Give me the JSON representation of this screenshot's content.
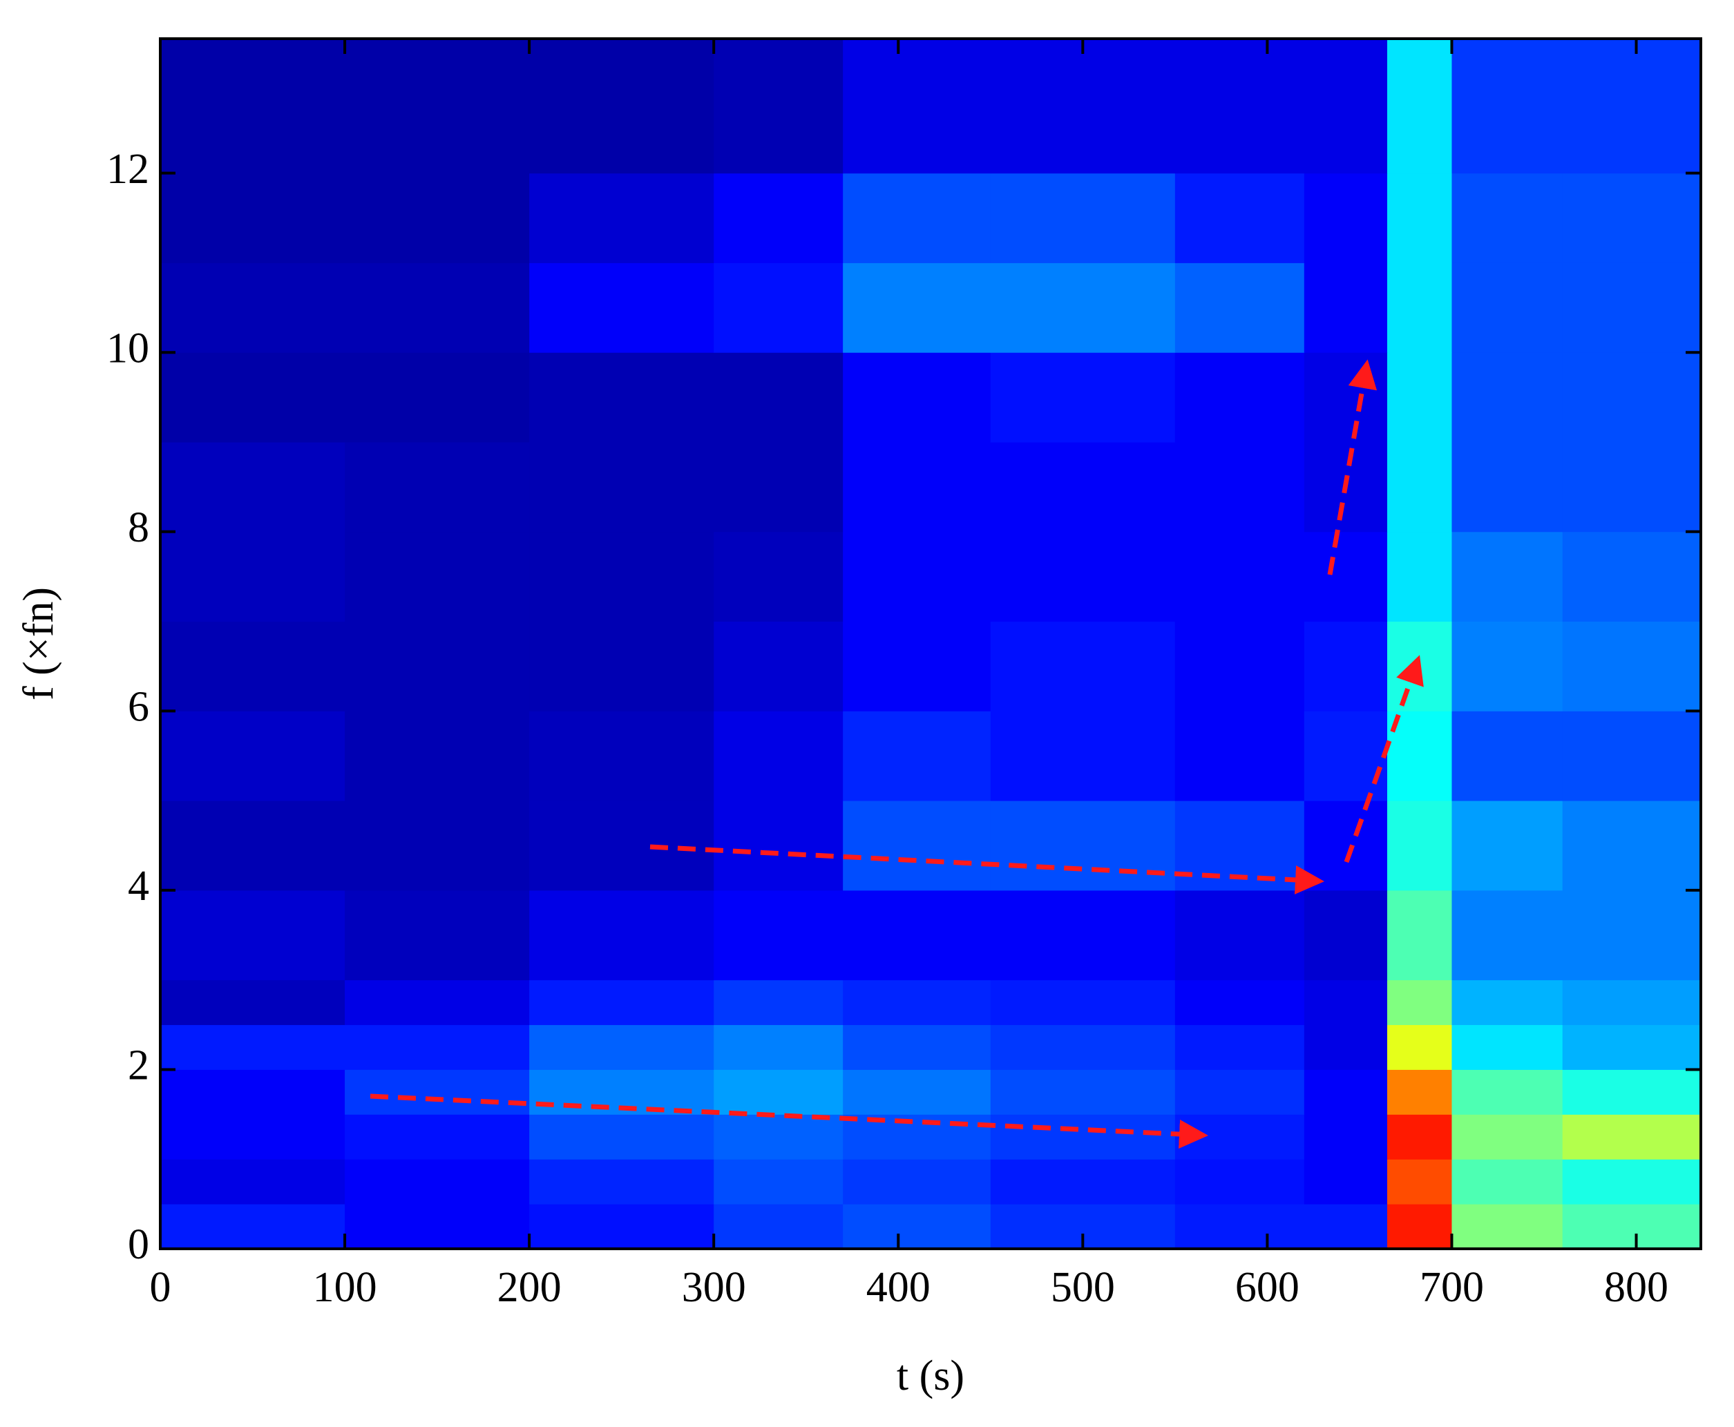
{
  "chart_data": {
    "type": "heatmap",
    "x_label": "t (s)",
    "y_label": "f (×fn)",
    "x_bins": [
      0,
      100,
      200,
      300,
      370,
      450,
      550,
      620,
      665,
      700,
      760,
      835
    ],
    "y_bins": [
      0,
      0.5,
      1,
      1.5,
      2,
      2.5,
      3,
      4,
      5,
      6,
      7,
      8,
      9,
      10,
      11,
      12,
      13.5
    ],
    "z": [
      [
        0.15,
        0.12,
        0.14,
        0.18,
        0.2,
        0.17,
        0.15,
        0.15,
        0.85,
        0.5,
        0.45
      ],
      [
        0.1,
        0.12,
        0.16,
        0.2,
        0.18,
        0.15,
        0.14,
        0.12,
        0.8,
        0.45,
        0.4
      ],
      [
        0.12,
        0.14,
        0.2,
        0.22,
        0.2,
        0.18,
        0.15,
        0.12,
        0.85,
        0.5,
        0.55
      ],
      [
        0.12,
        0.18,
        0.25,
        0.28,
        0.24,
        0.2,
        0.17,
        0.12,
        0.75,
        0.45,
        0.4
      ],
      [
        0.15,
        0.15,
        0.22,
        0.25,
        0.2,
        0.18,
        0.15,
        0.1,
        0.6,
        0.35,
        0.3
      ],
      [
        0.06,
        0.1,
        0.15,
        0.18,
        0.16,
        0.15,
        0.12,
        0.1,
        0.5,
        0.3,
        0.28
      ],
      [
        0.08,
        0.06,
        0.1,
        0.12,
        0.12,
        0.12,
        0.1,
        0.08,
        0.45,
        0.25,
        0.25
      ],
      [
        0.05,
        0.05,
        0.06,
        0.1,
        0.2,
        0.2,
        0.18,
        0.12,
        0.4,
        0.28,
        0.25
      ],
      [
        0.07,
        0.05,
        0.06,
        0.1,
        0.16,
        0.14,
        0.12,
        0.15,
        0.38,
        0.2,
        0.2
      ],
      [
        0.05,
        0.05,
        0.05,
        0.08,
        0.12,
        0.14,
        0.12,
        0.14,
        0.4,
        0.25,
        0.24
      ],
      [
        0.06,
        0.05,
        0.05,
        0.06,
        0.12,
        0.12,
        0.12,
        0.12,
        0.35,
        0.24,
        0.22
      ],
      [
        0.06,
        0.05,
        0.05,
        0.05,
        0.12,
        0.12,
        0.12,
        0.1,
        0.35,
        0.2,
        0.2
      ],
      [
        0.04,
        0.04,
        0.05,
        0.05,
        0.12,
        0.14,
        0.12,
        0.1,
        0.35,
        0.2,
        0.2
      ],
      [
        0.05,
        0.05,
        0.12,
        0.14,
        0.25,
        0.25,
        0.22,
        0.12,
        0.35,
        0.2,
        0.2
      ],
      [
        0.04,
        0.04,
        0.08,
        0.12,
        0.2,
        0.2,
        0.15,
        0.12,
        0.35,
        0.2,
        0.2
      ],
      [
        0.04,
        0.04,
        0.04,
        0.05,
        0.1,
        0.1,
        0.1,
        0.1,
        0.35,
        0.18,
        0.18
      ]
    ],
    "colormap": "jet",
    "xlim": [
      0,
      835
    ],
    "ylim": [
      0,
      13.5
    ],
    "xticks": [
      0,
      100,
      200,
      300,
      400,
      500,
      600,
      700,
      800
    ],
    "yticks": [
      0,
      2,
      4,
      6,
      8,
      10,
      12
    ]
  }
}
